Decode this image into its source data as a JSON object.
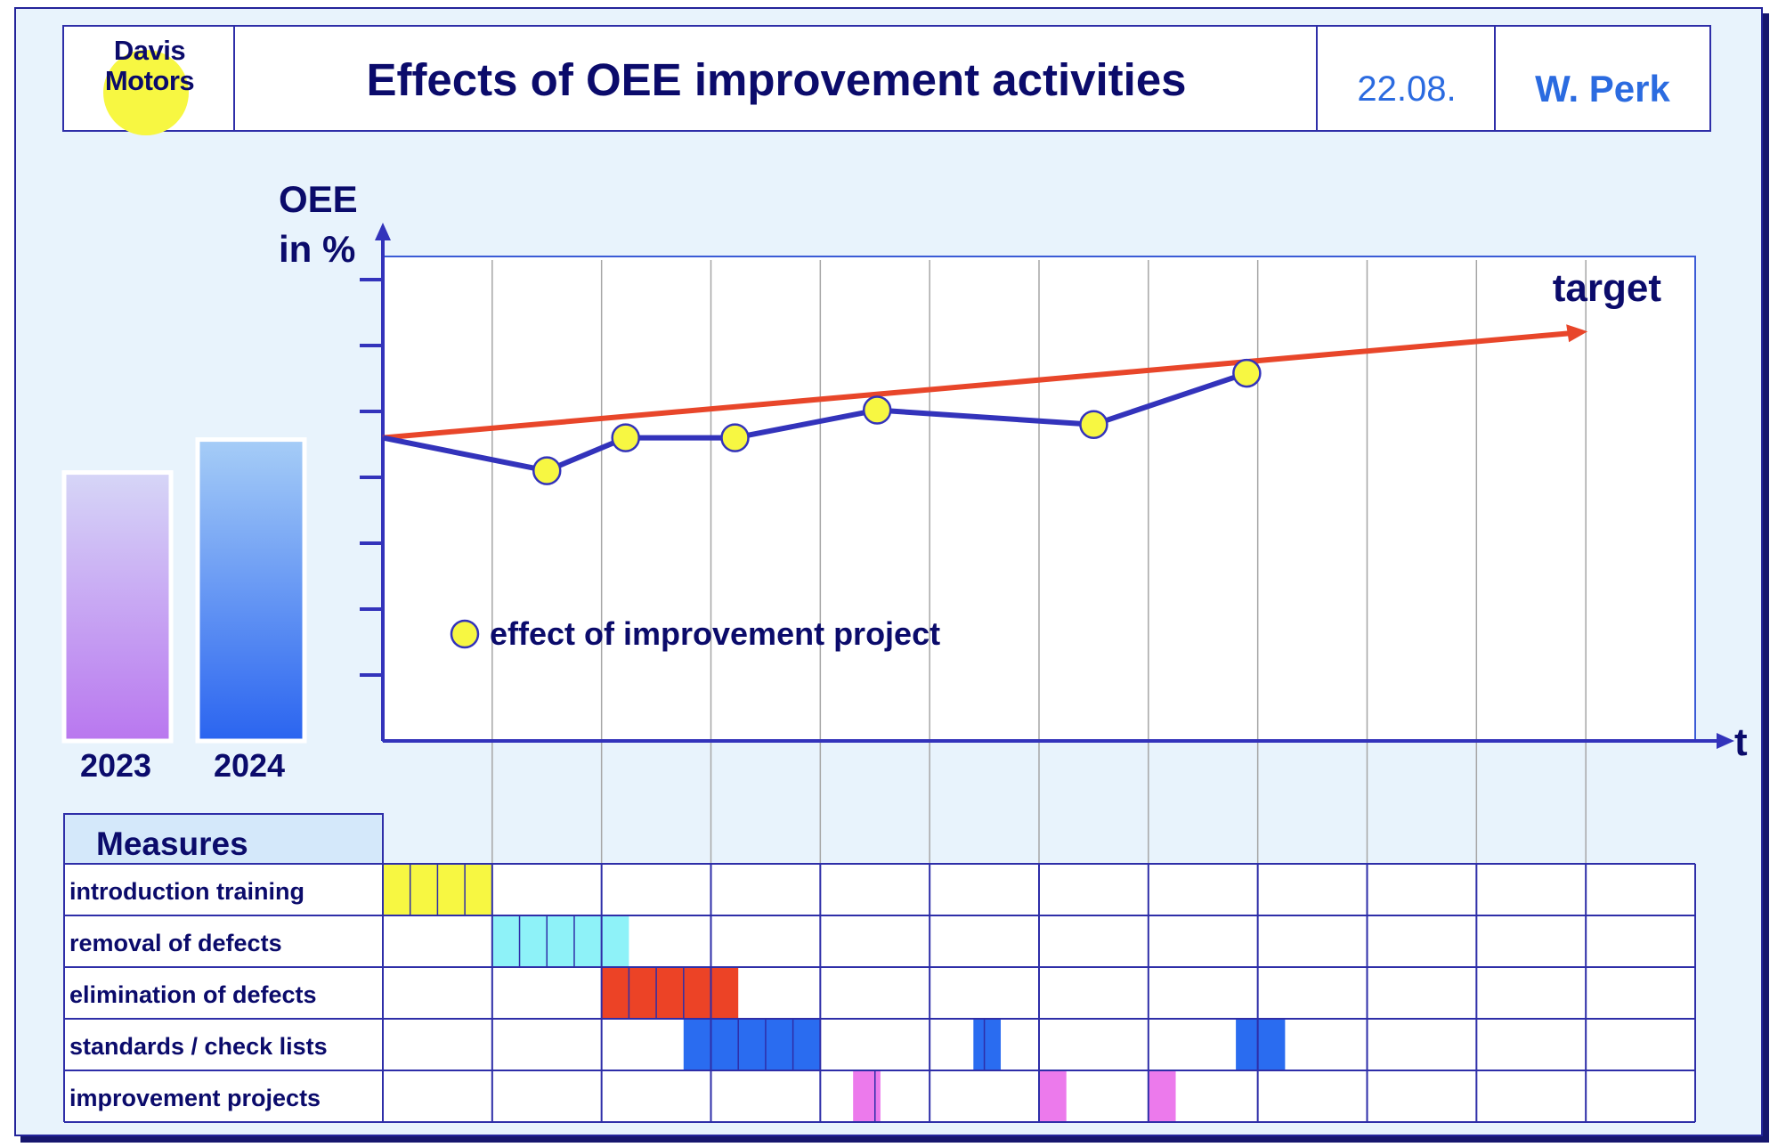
{
  "header": {
    "logo_line1": "Davis",
    "logo_line2": "Motors",
    "title": "Effects of OEE improvement activities",
    "date": "22.08.",
    "author": "W. Perk"
  },
  "colors": {
    "actual_line": "#3333bb",
    "target_line": "#e8462a",
    "marker": "#f7f742",
    "training": "#f7f742",
    "removal": "#8ef2f8",
    "elimination": "#ec4326",
    "standards": "#2a6cf0",
    "projects": "#ec7aec"
  },
  "chart_data": {
    "type": "line",
    "title": "Effects of OEE improvement activities",
    "xlabel": "t",
    "ylabel": "OEE in %",
    "x_range": [
      0,
      12
    ],
    "y_range": [
      0,
      7
    ],
    "y_ticks": [
      1,
      2,
      3,
      4,
      5,
      6,
      7
    ],
    "grid_x": true,
    "series": [
      {
        "name": "effect of improvement project",
        "points": [
          [
            0,
            4.6
          ],
          [
            1.5,
            4.1
          ],
          [
            2.22,
            4.6
          ],
          [
            3.22,
            4.6
          ],
          [
            4.52,
            5.02
          ],
          [
            6.5,
            4.8
          ],
          [
            7.9,
            5.58
          ]
        ],
        "markers": [
          1,
          2,
          3,
          4,
          5,
          6
        ]
      },
      {
        "name": "target",
        "points": [
          [
            0,
            4.6
          ],
          [
            11.0,
            6.2
          ]
        ]
      }
    ],
    "annotations": [
      "target",
      "effect of improvement project"
    ],
    "reference_bars": [
      {
        "label": "2023",
        "value": 4.1
      },
      {
        "label": "2024",
        "value": 4.6
      }
    ]
  },
  "measures": {
    "header": "Measures",
    "columns": 12,
    "subdivisions": 4,
    "rows": [
      {
        "name": "introduction training",
        "color": "training",
        "blocks": [
          [
            0,
            1.0
          ]
        ]
      },
      {
        "name": "removal of defects",
        "color": "removal",
        "blocks": [
          [
            1.0,
            2.25
          ]
        ]
      },
      {
        "name": "elimination of defects",
        "color": "elimination",
        "blocks": [
          [
            2.0,
            3.25
          ]
        ]
      },
      {
        "name": "standards / check lists",
        "color": "standards",
        "blocks": [
          [
            2.75,
            4.0
          ],
          [
            5.4,
            5.65
          ],
          [
            7.8,
            8.25
          ]
        ]
      },
      {
        "name": "improvement projects",
        "color": "projects",
        "blocks": [
          [
            4.3,
            4.55
          ],
          [
            6.0,
            6.25
          ],
          [
            7.0,
            7.25
          ]
        ]
      }
    ]
  }
}
